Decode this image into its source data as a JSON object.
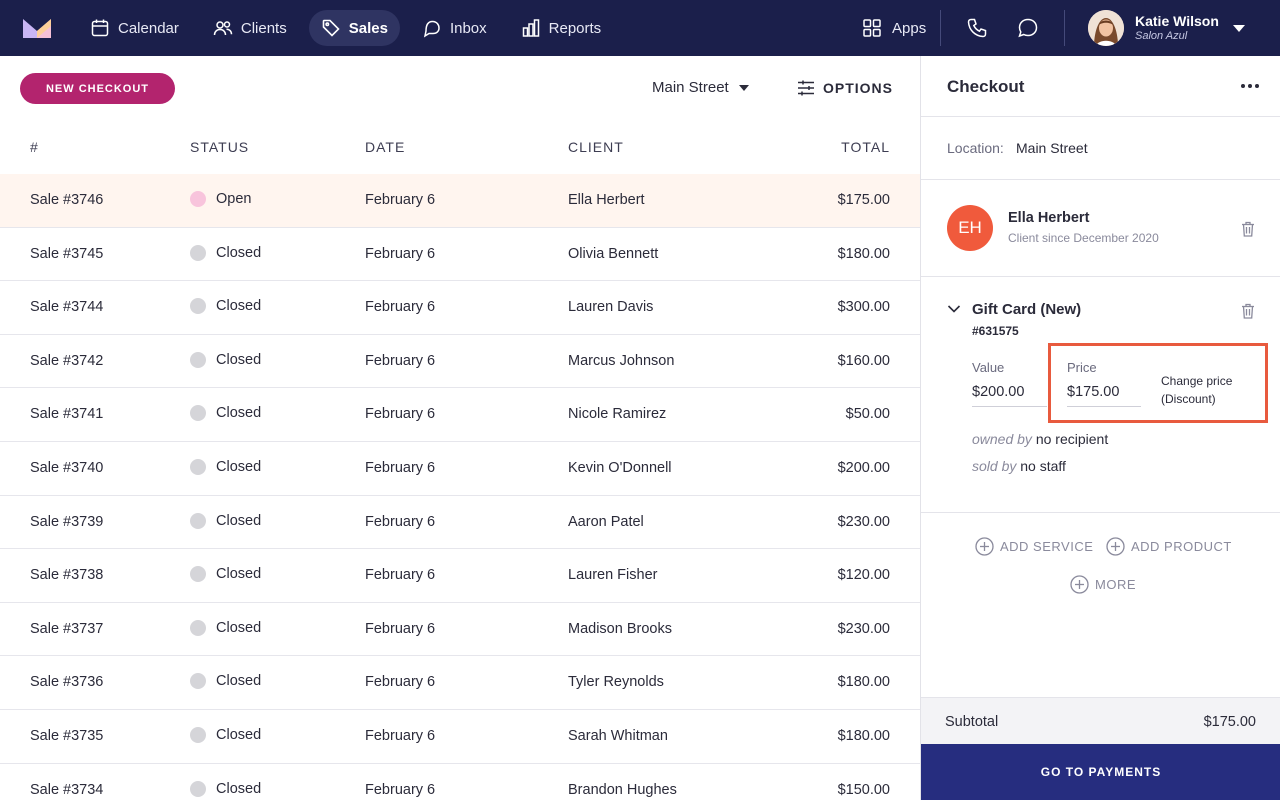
{
  "nav": {
    "items": [
      {
        "label": "Calendar",
        "icon": "calendar-icon"
      },
      {
        "label": "Clients",
        "icon": "users-icon"
      },
      {
        "label": "Sales",
        "icon": "tag-icon",
        "active": true
      },
      {
        "label": "Inbox",
        "icon": "inbox-icon"
      },
      {
        "label": "Reports",
        "icon": "bar-chart-icon"
      }
    ],
    "apps_label": "Apps",
    "user": {
      "name": "Katie Wilson",
      "salon": "Salon Azul"
    }
  },
  "toolbar": {
    "new_checkout_label": "NEW CHECKOUT",
    "location": "Main Street",
    "options_label": "OPTIONS"
  },
  "table": {
    "headers": {
      "num": "#",
      "status": "STATUS",
      "date": "DATE",
      "client": "CLIENT",
      "total": "TOTAL"
    },
    "rows": [
      {
        "num": "Sale #3746",
        "status": "Open",
        "date": "February 6",
        "client": "Ella Herbert",
        "total": "$175.00"
      },
      {
        "num": "Sale #3745",
        "status": "Closed",
        "date": "February 6",
        "client": "Olivia Bennett",
        "total": "$180.00"
      },
      {
        "num": "Sale #3744",
        "status": "Closed",
        "date": "February 6",
        "client": "Lauren Davis",
        "total": "$300.00"
      },
      {
        "num": "Sale #3742",
        "status": "Closed",
        "date": "February 6",
        "client": "Marcus Johnson",
        "total": "$160.00"
      },
      {
        "num": "Sale #3741",
        "status": "Closed",
        "date": "February 6",
        "client": "Nicole Ramirez",
        "total": "$50.00"
      },
      {
        "num": "Sale #3740",
        "status": "Closed",
        "date": "February 6",
        "client": "Kevin O'Donnell",
        "total": "$200.00"
      },
      {
        "num": "Sale #3739",
        "status": "Closed",
        "date": "February 6",
        "client": "Aaron Patel",
        "total": "$230.00"
      },
      {
        "num": "Sale #3738",
        "status": "Closed",
        "date": "February 6",
        "client": "Lauren Fisher",
        "total": "$120.00"
      },
      {
        "num": "Sale #3737",
        "status": "Closed",
        "date": "February 6",
        "client": "Madison Brooks",
        "total": "$230.00"
      },
      {
        "num": "Sale #3736",
        "status": "Closed",
        "date": "February 6",
        "client": "Tyler Reynolds",
        "total": "$180.00"
      },
      {
        "num": "Sale #3735",
        "status": "Closed",
        "date": "February 6",
        "client": "Sarah Whitman",
        "total": "$180.00"
      },
      {
        "num": "Sale #3734",
        "status": "Closed",
        "date": "February 6",
        "client": "Brandon Hughes",
        "total": "$150.00"
      }
    ]
  },
  "checkout": {
    "title": "Checkout",
    "location_label": "Location:",
    "location_value": "Main Street",
    "client": {
      "initials": "EH",
      "name": "Ella Herbert",
      "since": "Client since December 2020"
    },
    "item": {
      "name": "Gift Card (New)",
      "code": "#631575",
      "value_label": "Value",
      "value": "$200.00",
      "price_label": "Price",
      "price": "$175.00",
      "change_price_line1": "Change price",
      "change_price_line2": "(Discount)",
      "owned_by_label": "owned by",
      "owned_by_value": "no recipient",
      "sold_by_label": "sold by",
      "sold_by_value": "no staff"
    },
    "add_service_label": "ADD SERVICE",
    "add_product_label": "ADD PRODUCT",
    "more_label": "MORE",
    "subtotal_label": "Subtotal",
    "subtotal_value": "$175.00",
    "pay_label": "GO TO PAYMENTS"
  },
  "colors": {
    "nav_bg": "#1b1f4b",
    "accent_pink": "#b3246e",
    "highlight_row": "#fff5ef",
    "avatar_orange": "#f05a3c",
    "callout_red": "#e85a3e",
    "pay_button": "#262d7f"
  }
}
